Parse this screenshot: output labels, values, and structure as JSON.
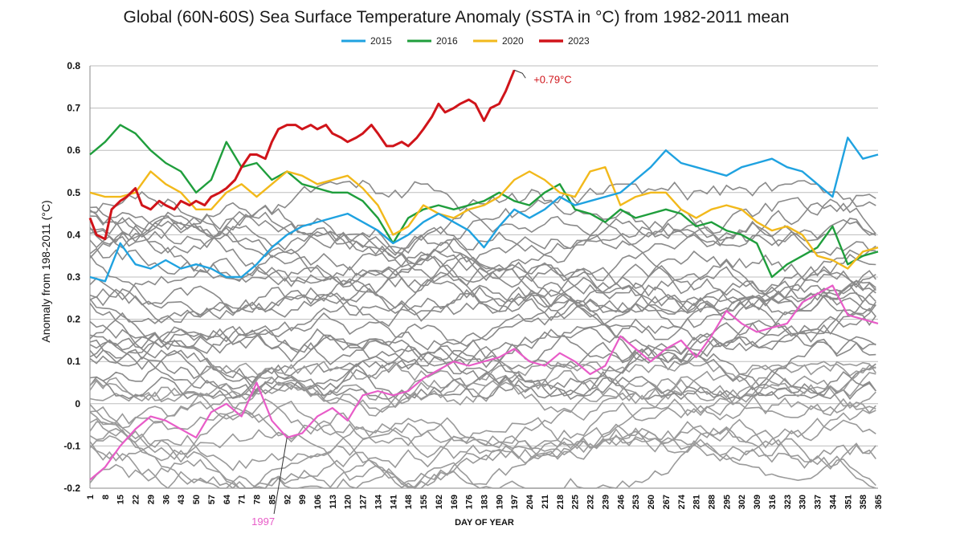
{
  "chart_data": {
    "type": "line",
    "title": "Global (60N-60S) Sea Surface Temperature Anomaly (SSTA in °C) from 1982-2011 mean",
    "xlabel": "DAY OF YEAR",
    "ylabel": "Anomaly from 198-2011 (°C)",
    "xlim": [
      1,
      365
    ],
    "ylim": [
      -0.2,
      0.8
    ],
    "yticks": [
      "0.8",
      "0.7",
      "0.6",
      "0.5",
      "0.4",
      "0.3",
      "0.2",
      "0.1",
      "0",
      "-0.1",
      "-0.2"
    ],
    "ytick_values": [
      0.8,
      0.7,
      0.6,
      0.5,
      0.4,
      0.3,
      0.2,
      0.1,
      0,
      -0.1,
      -0.2
    ],
    "xticks": [
      "1",
      "8",
      "15",
      "22",
      "29",
      "36",
      "43",
      "50",
      "57",
      "64",
      "71",
      "78",
      "85",
      "92",
      "99",
      "106",
      "113",
      "120",
      "127",
      "134",
      "141",
      "148",
      "155",
      "162",
      "169",
      "176",
      "183",
      "190",
      "197",
      "204",
      "211",
      "218",
      "225",
      "232",
      "239",
      "246",
      "253",
      "260",
      "267",
      "274",
      "281",
      "288",
      "295",
      "302",
      "309",
      "316",
      "323",
      "330",
      "337",
      "344",
      "351",
      "358",
      "365"
    ],
    "grid": true,
    "legend_position": "top-center",
    "series": [
      {
        "name": "2015",
        "color": "#1fa2e0",
        "highlight": true,
        "x": [
          1,
          8,
          15,
          22,
          29,
          36,
          43,
          50,
          57,
          64,
          71,
          78,
          85,
          92,
          99,
          106,
          113,
          120,
          127,
          134,
          141,
          148,
          155,
          162,
          169,
          176,
          183,
          190,
          197,
          204,
          211,
          218,
          225,
          232,
          239,
          246,
          253,
          260,
          267,
          274,
          281,
          288,
          295,
          302,
          309,
          316,
          323,
          330,
          337,
          344,
          351,
          358,
          365
        ],
        "values": [
          0.3,
          0.29,
          0.38,
          0.33,
          0.32,
          0.34,
          0.32,
          0.33,
          0.32,
          0.3,
          0.3,
          0.33,
          0.37,
          0.4,
          0.42,
          0.43,
          0.44,
          0.45,
          0.43,
          0.41,
          0.38,
          0.4,
          0.43,
          0.45,
          0.43,
          0.41,
          0.37,
          0.42,
          0.46,
          0.44,
          0.46,
          0.49,
          0.47,
          0.48,
          0.49,
          0.5,
          0.53,
          0.56,
          0.6,
          0.57,
          0.56,
          0.55,
          0.54,
          0.56,
          0.57,
          0.58,
          0.56,
          0.55,
          0.52,
          0.49,
          0.63,
          0.58,
          0.59
        ]
      },
      {
        "name": "2016",
        "color": "#1f9e3c",
        "highlight": true,
        "x": [
          1,
          8,
          15,
          22,
          29,
          36,
          43,
          50,
          57,
          64,
          71,
          78,
          85,
          92,
          99,
          106,
          113,
          120,
          127,
          134,
          141,
          148,
          155,
          162,
          169,
          176,
          183,
          190,
          197,
          204,
          211,
          218,
          225,
          232,
          239,
          246,
          253,
          260,
          267,
          274,
          281,
          288,
          295,
          302,
          309,
          316,
          323,
          330,
          337,
          344,
          351,
          358,
          365
        ],
        "values": [
          0.59,
          0.62,
          0.66,
          0.64,
          0.6,
          0.57,
          0.55,
          0.5,
          0.53,
          0.62,
          0.56,
          0.57,
          0.53,
          0.55,
          0.52,
          0.51,
          0.5,
          0.5,
          0.48,
          0.44,
          0.38,
          0.44,
          0.46,
          0.47,
          0.46,
          0.47,
          0.48,
          0.5,
          0.48,
          0.47,
          0.5,
          0.52,
          0.46,
          0.45,
          0.43,
          0.46,
          0.44,
          0.45,
          0.46,
          0.45,
          0.42,
          0.43,
          0.41,
          0.4,
          0.38,
          0.3,
          0.33,
          0.35,
          0.37,
          0.42,
          0.33,
          0.35,
          0.36
        ]
      },
      {
        "name": "2020",
        "color": "#f2b91b",
        "highlight": true,
        "x": [
          1,
          8,
          15,
          22,
          29,
          36,
          43,
          50,
          57,
          64,
          71,
          78,
          85,
          92,
          99,
          106,
          113,
          120,
          127,
          134,
          141,
          148,
          155,
          162,
          169,
          176,
          183,
          190,
          197,
          204,
          211,
          218,
          225,
          232,
          239,
          246,
          253,
          260,
          267,
          274,
          281,
          288,
          295,
          302,
          309,
          316,
          323,
          330,
          337,
          344,
          351,
          358,
          365
        ],
        "values": [
          0.5,
          0.49,
          0.49,
          0.5,
          0.55,
          0.52,
          0.5,
          0.46,
          0.46,
          0.5,
          0.52,
          0.49,
          0.52,
          0.55,
          0.54,
          0.52,
          0.53,
          0.54,
          0.51,
          0.47,
          0.4,
          0.42,
          0.47,
          0.45,
          0.44,
          0.46,
          0.47,
          0.49,
          0.53,
          0.55,
          0.53,
          0.5,
          0.49,
          0.55,
          0.56,
          0.47,
          0.49,
          0.5,
          0.5,
          0.46,
          0.44,
          0.46,
          0.47,
          0.46,
          0.43,
          0.41,
          0.42,
          0.4,
          0.35,
          0.34,
          0.32,
          0.36,
          0.37
        ]
      },
      {
        "name": "2023",
        "color": "#d0141a",
        "highlight": true,
        "x": [
          1,
          4,
          8,
          11,
          15,
          18,
          22,
          25,
          29,
          33,
          36,
          40,
          43,
          47,
          50,
          54,
          57,
          61,
          64,
          68,
          71,
          75,
          78,
          82,
          85,
          88,
          92,
          96,
          99,
          103,
          106,
          110,
          113,
          117,
          120,
          124,
          127,
          131,
          134,
          138,
          141,
          145,
          148,
          152,
          155,
          159,
          162,
          165,
          169,
          172,
          176,
          179,
          183,
          186,
          190,
          193,
          197
        ],
        "values": [
          0.44,
          0.4,
          0.39,
          0.46,
          0.48,
          0.49,
          0.51,
          0.47,
          0.46,
          0.48,
          0.47,
          0.46,
          0.48,
          0.47,
          0.48,
          0.47,
          0.49,
          0.5,
          0.51,
          0.53,
          0.56,
          0.59,
          0.59,
          0.58,
          0.62,
          0.65,
          0.66,
          0.66,
          0.65,
          0.66,
          0.65,
          0.66,
          0.64,
          0.63,
          0.62,
          0.63,
          0.64,
          0.66,
          0.64,
          0.61,
          0.61,
          0.62,
          0.61,
          0.63,
          0.65,
          0.68,
          0.71,
          0.69,
          0.7,
          0.71,
          0.72,
          0.71,
          0.67,
          0.7,
          0.71,
          0.74,
          0.79
        ]
      },
      {
        "name": "1997",
        "color": "#e85cc8",
        "highlight": true,
        "x": [
          1,
          8,
          15,
          22,
          29,
          36,
          43,
          50,
          57,
          64,
          71,
          78,
          85,
          92,
          99,
          106,
          113,
          120,
          127,
          134,
          141,
          148,
          155,
          162,
          169,
          176,
          183,
          190,
          197,
          204,
          211,
          218,
          225,
          232,
          239,
          246,
          253,
          260,
          267,
          274,
          281,
          288,
          295,
          302,
          309,
          316,
          323,
          330,
          337,
          344,
          351,
          358,
          365
        ],
        "values": [
          -0.18,
          -0.15,
          -0.1,
          -0.06,
          -0.03,
          -0.04,
          -0.06,
          -0.08,
          -0.02,
          0.0,
          -0.03,
          0.05,
          -0.04,
          -0.08,
          -0.07,
          -0.03,
          -0.01,
          -0.04,
          0.02,
          0.03,
          0.02,
          0.03,
          0.06,
          0.08,
          0.1,
          0.09,
          0.1,
          0.11,
          0.13,
          0.1,
          0.09,
          0.12,
          0.1,
          0.07,
          0.09,
          0.16,
          0.13,
          0.1,
          0.13,
          0.15,
          0.11,
          0.16,
          0.22,
          0.19,
          0.17,
          0.18,
          0.19,
          0.24,
          0.26,
          0.28,
          0.21,
          0.2,
          0.19
        ]
      }
    ],
    "annotations": [
      {
        "text": "+0.79°C",
        "color": "#d0141a"
      },
      {
        "text": "1997",
        "color": "#e85cc8"
      }
    ],
    "background_series_color": "#8a8a8a",
    "background_series_count": 39,
    "background_band_ranges": [
      [
        -0.18,
        0.05
      ],
      [
        0.05,
        0.25
      ],
      [
        0.25,
        0.48
      ]
    ]
  }
}
